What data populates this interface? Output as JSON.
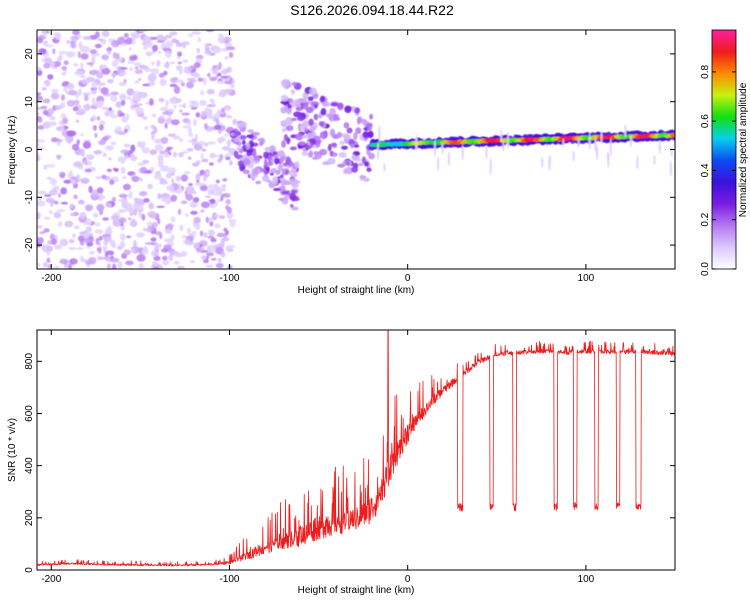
{
  "title": "S126.2026.094.18.44.R22",
  "colors": {
    "snr_line": "#ee1c1c",
    "colormap": [
      "#ffffff",
      "#dcc8ff",
      "#b478f2",
      "#7a1de0",
      "#3b10dd",
      "#0c4cf0",
      "#05d0ee",
      "#10e010",
      "#c8f010",
      "#ff8a00",
      "#ee1c1c",
      "#ff1ea0"
    ]
  },
  "chart_data": [
    {
      "type": "heatmap",
      "name": "spectrogram",
      "xlabel": "Height of straight line (km)",
      "ylabel": "Frequency (Hz)",
      "xlim": [
        -208,
        150
      ],
      "ylim": [
        -25,
        25
      ],
      "xticks": [
        -200,
        -100,
        0,
        100
      ],
      "xtick_labels": [
        "-200",
        "-100",
        "0",
        "100"
      ],
      "yticks": [
        -20,
        -10,
        0,
        10,
        20
      ],
      "ytick_labels": [
        "-20",
        "-10",
        "0",
        "10",
        "20"
      ],
      "colorbar": {
        "label": "Normalized spectral amplitude",
        "range": [
          0,
          0.97
        ],
        "ticks": [
          0,
          0.2,
          0.4,
          0.6,
          0.8
        ],
        "tick_labels": [
          "0.0",
          "0.2",
          "0.4",
          "0.6",
          "0.8"
        ]
      },
      "regions": [
        {
          "x": [
            -208,
            -98
          ],
          "freq_center": 0,
          "freq_spread": 25,
          "amplitude": [
            0.02,
            0.15
          ],
          "description": "noise"
        },
        {
          "x": [
            -98,
            -62
          ],
          "freq_center_start": 2,
          "freq_center_end": -8,
          "amplitude": [
            0.1,
            0.3
          ]
        },
        {
          "x": [
            -70,
            -20
          ],
          "freq_center_start": 8,
          "freq_center_end": 0,
          "amplitude": [
            0.1,
            0.3
          ]
        },
        {
          "x": [
            -20,
            150
          ],
          "freq_center_start": 1,
          "freq_center_end": 3,
          "amplitude": [
            0.45,
            0.95
          ],
          "description": "carrier line"
        }
      ]
    },
    {
      "type": "line",
      "name": "snr",
      "xlabel": "Height of straight line (km)",
      "ylabel": "SNR (10 * v/v)",
      "xlim": [
        -208,
        150
      ],
      "ylim": [
        0,
        920
      ],
      "xticks": [
        -200,
        -100,
        0,
        100
      ],
      "xtick_labels": [
        "-200",
        "-100",
        "0",
        "100"
      ],
      "yticks": [
        0,
        200,
        400,
        600,
        800
      ],
      "ytick_labels": [
        "0",
        "200",
        "400",
        "600",
        "800"
      ],
      "series": [
        {
          "name": "SNR",
          "x": [
            -208,
            -190,
            -170,
            -150,
            -130,
            -110,
            -100,
            -90,
            -80,
            -70,
            -60,
            -50,
            -40,
            -30,
            -20,
            -15,
            -10,
            -5,
            0,
            5,
            10,
            15,
            20,
            25,
            30,
            40,
            50,
            60,
            70,
            80,
            90,
            100,
            110,
            120,
            130,
            140,
            150
          ],
          "values": [
            20,
            25,
            22,
            20,
            18,
            22,
            30,
            60,
            90,
            120,
            140,
            170,
            190,
            200,
            240,
            300,
            400,
            470,
            530,
            580,
            620,
            660,
            690,
            720,
            750,
            800,
            830,
            835,
            840,
            840,
            835,
            840,
            840,
            838,
            840,
            835,
            830
          ],
          "noise_amplitude": [
            8,
            8,
            8,
            8,
            8,
            8,
            15,
            40,
            60,
            80,
            100,
            110,
            110,
            110,
            120,
            130,
            130,
            110,
            90,
            70,
            60,
            50,
            40,
            35,
            30,
            25,
            20,
            20,
            20,
            20,
            20,
            20,
            20,
            20,
            20,
            20,
            20
          ],
          "spike": {
            "x": -11,
            "value": 920
          },
          "dropouts": [
            {
              "x_start": 28,
              "x_end": 31,
              "value": 240
            },
            {
              "x_start": 46,
              "x_end": 48,
              "value": 240
            },
            {
              "x_start": 59,
              "x_end": 61,
              "value": 240
            },
            {
              "x_start": 82,
              "x_end": 84,
              "value": 240
            },
            {
              "x_start": 93,
              "x_end": 95,
              "value": 245
            },
            {
              "x_start": 105,
              "x_end": 107,
              "value": 245
            },
            {
              "x_start": 117,
              "x_end": 119,
              "value": 245
            },
            {
              "x_start": 128,
              "x_end": 131,
              "value": 245
            }
          ]
        }
      ]
    }
  ]
}
